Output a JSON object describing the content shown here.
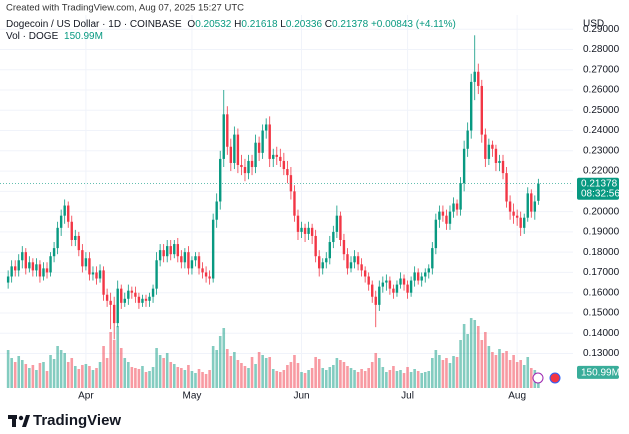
{
  "header": {
    "credit": "Created with TradingView.com, Aug 07, 2025 15:27 UTC",
    "symbol": "Dogecoin / US Dollar · 1D · COINBASE",
    "o_label": "O",
    "h_label": "H",
    "l_label": "L",
    "c_label": "C",
    "change": "+0.00843 (+4.11%)",
    "vol_label": "Vol · DOGE"
  },
  "chart_data": {
    "type": "candlestick",
    "currency": "USD",
    "up_color": "#089981",
    "down_color": "#f23645",
    "grid": true,
    "open": [
      0.165,
      0.168,
      0.173,
      0.171,
      0.176,
      0.18,
      0.172,
      0.175,
      0.171,
      0.174,
      0.168,
      0.172,
      0.17,
      0.178,
      0.182,
      0.192,
      0.198,
      0.203,
      0.195,
      0.186,
      0.188,
      0.181,
      0.173,
      0.177,
      0.169,
      0.17,
      0.167,
      0.171,
      0.159,
      0.156,
      0.154,
      0.145,
      0.162,
      0.155,
      0.157,
      0.161,
      0.16,
      0.158,
      0.155,
      0.157,
      0.156,
      0.158,
      0.162,
      0.176,
      0.181,
      0.178,
      0.183,
      0.179,
      0.184,
      0.178,
      0.175,
      0.18,
      0.172,
      0.176,
      0.178,
      0.172,
      0.17,
      0.168,
      0.167,
      0.196,
      0.205,
      0.226,
      0.248,
      0.232,
      0.224,
      0.238,
      0.223,
      0.222,
      0.219,
      0.225,
      0.222,
      0.234,
      0.229,
      0.24,
      0.243,
      0.226,
      0.228,
      0.227,
      0.225,
      0.221,
      0.218,
      0.21,
      0.198,
      0.19,
      0.192,
      0.189,
      0.192,
      0.188,
      0.178,
      0.172,
      0.175,
      0.177,
      0.185,
      0.19,
      0.198,
      0.186,
      0.179,
      0.172,
      0.175,
      0.178,
      0.174,
      0.171,
      0.168,
      0.164,
      0.158,
      0.154,
      0.163,
      0.165,
      0.166,
      0.162,
      0.16,
      0.164,
      0.167,
      0.164,
      0.16,
      0.166,
      0.17,
      0.166,
      0.168,
      0.17,
      0.172,
      0.182,
      0.196,
      0.2,
      0.198,
      0.194,
      0.2,
      0.204,
      0.201,
      0.214,
      0.231,
      0.24,
      0.264,
      0.269,
      0.262,
      0.238,
      0.226,
      0.233,
      0.231,
      0.224,
      0.225,
      0.219,
      0.205,
      0.2,
      0.198,
      0.197,
      0.192,
      0.197,
      0.209,
      0.2,
      0.20532
    ],
    "high": [
      0.171,
      0.176,
      0.176,
      0.179,
      0.183,
      0.182,
      0.178,
      0.177,
      0.177,
      0.176,
      0.175,
      0.175,
      0.18,
      0.185,
      0.195,
      0.201,
      0.206,
      0.205,
      0.198,
      0.191,
      0.19,
      0.184,
      0.18,
      0.18,
      0.173,
      0.173,
      0.174,
      0.173,
      0.162,
      0.16,
      0.158,
      0.166,
      0.164,
      0.16,
      0.164,
      0.163,
      0.163,
      0.16,
      0.159,
      0.159,
      0.16,
      0.164,
      0.18,
      0.184,
      0.184,
      0.186,
      0.186,
      0.186,
      0.187,
      0.181,
      0.182,
      0.183,
      0.178,
      0.18,
      0.18,
      0.175,
      0.173,
      0.171,
      0.199,
      0.209,
      0.23,
      0.26,
      0.252,
      0.236,
      0.242,
      0.241,
      0.228,
      0.226,
      0.228,
      0.228,
      0.238,
      0.237,
      0.243,
      0.246,
      0.247,
      0.231,
      0.232,
      0.231,
      0.229,
      0.225,
      0.222,
      0.213,
      0.201,
      0.195,
      0.194,
      0.195,
      0.194,
      0.191,
      0.181,
      0.177,
      0.18,
      0.188,
      0.193,
      0.203,
      0.2,
      0.189,
      0.182,
      0.178,
      0.181,
      0.18,
      0.177,
      0.173,
      0.17,
      0.166,
      0.161,
      0.166,
      0.168,
      0.169,
      0.168,
      0.164,
      0.166,
      0.17,
      0.169,
      0.166,
      0.168,
      0.173,
      0.172,
      0.17,
      0.172,
      0.174,
      0.185,
      0.199,
      0.203,
      0.203,
      0.201,
      0.203,
      0.207,
      0.206,
      0.217,
      0.235,
      0.244,
      0.268,
      0.287,
      0.273,
      0.265,
      0.241,
      0.236,
      0.235,
      0.233,
      0.228,
      0.228,
      0.222,
      0.208,
      0.204,
      0.201,
      0.2,
      0.199,
      0.212,
      0.211,
      0.208,
      0.21618
    ],
    "low": [
      0.162,
      0.165,
      0.168,
      0.168,
      0.172,
      0.169,
      0.17,
      0.168,
      0.168,
      0.165,
      0.166,
      0.167,
      0.168,
      0.175,
      0.179,
      0.188,
      0.194,
      0.192,
      0.183,
      0.183,
      0.178,
      0.17,
      0.171,
      0.166,
      0.166,
      0.164,
      0.165,
      0.156,
      0.153,
      0.142,
      0.137,
      0.143,
      0.152,
      0.153,
      0.154,
      0.157,
      0.155,
      0.152,
      0.153,
      0.153,
      0.153,
      0.155,
      0.159,
      0.173,
      0.175,
      0.175,
      0.176,
      0.177,
      0.175,
      0.172,
      0.172,
      0.169,
      0.169,
      0.173,
      0.169,
      0.167,
      0.165,
      0.164,
      0.165,
      0.192,
      0.201,
      0.222,
      0.228,
      0.22,
      0.221,
      0.219,
      0.218,
      0.215,
      0.216,
      0.218,
      0.219,
      0.225,
      0.226,
      0.236,
      0.222,
      0.222,
      0.223,
      0.222,
      0.218,
      0.214,
      0.206,
      0.195,
      0.186,
      0.187,
      0.185,
      0.186,
      0.184,
      0.175,
      0.168,
      0.169,
      0.172,
      0.174,
      0.182,
      0.187,
      0.183,
      0.176,
      0.169,
      0.17,
      0.172,
      0.171,
      0.168,
      0.165,
      0.161,
      0.155,
      0.143,
      0.151,
      0.16,
      0.161,
      0.159,
      0.157,
      0.158,
      0.162,
      0.161,
      0.157,
      0.158,
      0.163,
      0.164,
      0.163,
      0.165,
      0.167,
      0.169,
      0.179,
      0.192,
      0.195,
      0.191,
      0.191,
      0.197,
      0.198,
      0.198,
      0.21,
      0.227,
      0.236,
      0.255,
      0.258,
      0.234,
      0.222,
      0.223,
      0.227,
      0.22,
      0.22,
      0.216,
      0.202,
      0.196,
      0.194,
      0.193,
      0.188,
      0.189,
      0.195,
      0.197,
      0.196,
      0.20336
    ],
    "close": [
      0.168,
      0.173,
      0.171,
      0.176,
      0.18,
      0.172,
      0.175,
      0.171,
      0.174,
      0.168,
      0.172,
      0.17,
      0.178,
      0.182,
      0.192,
      0.198,
      0.203,
      0.195,
      0.186,
      0.188,
      0.181,
      0.173,
      0.177,
      0.169,
      0.17,
      0.167,
      0.171,
      0.159,
      0.156,
      0.154,
      0.145,
      0.162,
      0.155,
      0.157,
      0.161,
      0.16,
      0.158,
      0.155,
      0.157,
      0.156,
      0.158,
      0.162,
      0.176,
      0.181,
      0.178,
      0.183,
      0.179,
      0.184,
      0.178,
      0.175,
      0.18,
      0.172,
      0.176,
      0.178,
      0.172,
      0.17,
      0.168,
      0.167,
      0.196,
      0.205,
      0.226,
      0.248,
      0.232,
      0.224,
      0.238,
      0.223,
      0.222,
      0.219,
      0.225,
      0.222,
      0.234,
      0.229,
      0.24,
      0.243,
      0.226,
      0.228,
      0.227,
      0.225,
      0.221,
      0.218,
      0.21,
      0.198,
      0.19,
      0.192,
      0.189,
      0.192,
      0.188,
      0.178,
      0.172,
      0.175,
      0.177,
      0.185,
      0.19,
      0.198,
      0.186,
      0.179,
      0.172,
      0.175,
      0.178,
      0.174,
      0.171,
      0.168,
      0.164,
      0.158,
      0.154,
      0.163,
      0.165,
      0.166,
      0.162,
      0.16,
      0.164,
      0.167,
      0.164,
      0.16,
      0.166,
      0.17,
      0.166,
      0.168,
      0.17,
      0.172,
      0.182,
      0.196,
      0.2,
      0.198,
      0.194,
      0.2,
      0.204,
      0.201,
      0.214,
      0.231,
      0.24,
      0.264,
      0.269,
      0.262,
      0.238,
      0.226,
      0.233,
      0.231,
      0.224,
      0.225,
      0.219,
      0.205,
      0.2,
      0.198,
      0.197,
      0.192,
      0.197,
      0.209,
      0.2,
      0.205,
      0.21378
    ],
    "volume": [
      380,
      300,
      260,
      320,
      280,
      240,
      200,
      230,
      180,
      250,
      260,
      170,
      330,
      290,
      420,
      380,
      350,
      260,
      300,
      220,
      190,
      230,
      240,
      220,
      180,
      200,
      260,
      420,
      300,
      560,
      480,
      620,
      400,
      300,
      260,
      210,
      200,
      190,
      220,
      160,
      170,
      210,
      400,
      330,
      300,
      350,
      260,
      240,
      210,
      200,
      180,
      230,
      170,
      150,
      190,
      160,
      140,
      180,
      420,
      380,
      520,
      600,
      390,
      320,
      360,
      280,
      250,
      220,
      200,
      310,
      240,
      360,
      330,
      300,
      310,
      190,
      170,
      160,
      180,
      230,
      260,
      330,
      250,
      160,
      150,
      180,
      200,
      310,
      290,
      200,
      180,
      210,
      230,
      300,
      280,
      260,
      220,
      200,
      180,
      160,
      190,
      170,
      200,
      260,
      350,
      300,
      210,
      160,
      180,
      220,
      170,
      180,
      150,
      210,
      160,
      190,
      170,
      150,
      160,
      170,
      300,
      380,
      330,
      280,
      300,
      250,
      320,
      310,
      480,
      640,
      540,
      700,
      680,
      620,
      480,
      560,
      420,
      360,
      330,
      390,
      350,
      370,
      280,
      330,
      260,
      280,
      230,
      310,
      200,
      180,
      150.99
    ],
    "last_volume_label": "150.99M",
    "countdown": "08:32:56",
    "xlim": [
      -2.3,
      159.8
    ],
    "xticks": [
      {
        "value": 22,
        "label": "Apr"
      },
      {
        "value": 52,
        "label": "May"
      },
      {
        "value": 83,
        "label": "Jun"
      },
      {
        "value": 113,
        "label": "Jul"
      },
      {
        "value": 144,
        "label": "Aug"
      }
    ],
    "ylim": [
      0.112,
      0.297
    ],
    "yticks": [
      {
        "value": 0.13,
        "label": "0.13000"
      },
      {
        "value": 0.14,
        "label": "0.14000"
      },
      {
        "value": 0.15,
        "label": "0.15000"
      },
      {
        "value": 0.16,
        "label": "0.16000"
      },
      {
        "value": 0.17,
        "label": "0.17000"
      },
      {
        "value": 0.18,
        "label": "0.18000"
      },
      {
        "value": 0.19,
        "label": "0.19000"
      },
      {
        "value": 0.2,
        "label": "0.20000"
      },
      {
        "value": 0.21,
        "label": "0.21000"
      },
      {
        "value": 0.22,
        "label": "0.22000"
      },
      {
        "value": 0.23,
        "label": "0.23000"
      },
      {
        "value": 0.24,
        "label": "0.24000"
      },
      {
        "value": 0.25,
        "label": "0.25000"
      },
      {
        "value": 0.26,
        "label": "0.26000"
      },
      {
        "value": 0.27,
        "label": "0.27000"
      },
      {
        "value": 0.28,
        "label": "0.28000"
      },
      {
        "value": 0.29,
        "label": "0.29000"
      }
    ]
  },
  "footer": {
    "brand": "TradingView"
  }
}
